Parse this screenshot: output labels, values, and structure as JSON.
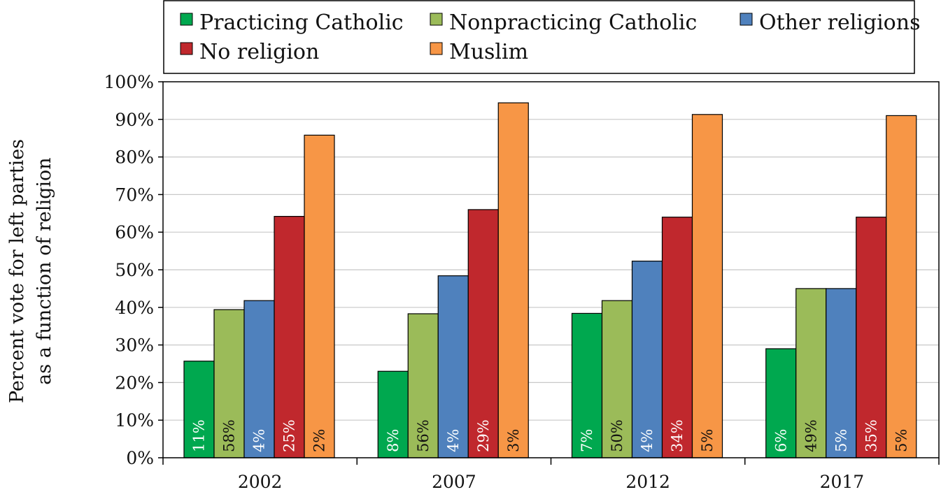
{
  "chart_data": {
    "type": "bar",
    "categories": [
      "2002",
      "2007",
      "2012",
      "2017"
    ],
    "series": [
      {
        "name": "Practicing Catholic",
        "color": "#00a84f",
        "values": [
          25.7,
          23.0,
          38.4,
          29.0
        ],
        "labels": [
          "11%",
          "8%",
          "7%",
          "6%"
        ]
      },
      {
        "name": "Nonpracticing Catholic",
        "color": "#9bbb59",
        "values": [
          39.4,
          38.3,
          41.8,
          45.0
        ],
        "labels": [
          "58%",
          "56%",
          "50%",
          "49%"
        ]
      },
      {
        "name": "Other religions",
        "color": "#4f81bd",
        "values": [
          41.8,
          48.4,
          52.3,
          45.0
        ],
        "labels": [
          "4%",
          "4%",
          "4%",
          "5%"
        ]
      },
      {
        "name": "No religion",
        "color": "#c0282d",
        "values": [
          64.2,
          66.0,
          64.0,
          64.0
        ],
        "labels": [
          "25%",
          "29%",
          "34%",
          "35%"
        ]
      },
      {
        "name": "Muslim",
        "color": "#f79646",
        "values": [
          85.8,
          94.4,
          91.3,
          91.0
        ],
        "labels": [
          "2%",
          "3%",
          "5%",
          "5%"
        ]
      }
    ],
    "title": "",
    "xlabel": "",
    "ylabel_lines": [
      "Percent vote for left parties",
      "as a function of religion"
    ],
    "ylim": [
      0,
      100
    ],
    "yticks": [
      0,
      10,
      20,
      30,
      40,
      50,
      60,
      70,
      80,
      90,
      100
    ],
    "ytick_labels": [
      "0%",
      "10%",
      "20%",
      "30%",
      "40%",
      "50%",
      "60%",
      "70%",
      "80%",
      "90%",
      "100%"
    ],
    "grid": true,
    "legend": {
      "position": "top",
      "columns": 3
    }
  }
}
